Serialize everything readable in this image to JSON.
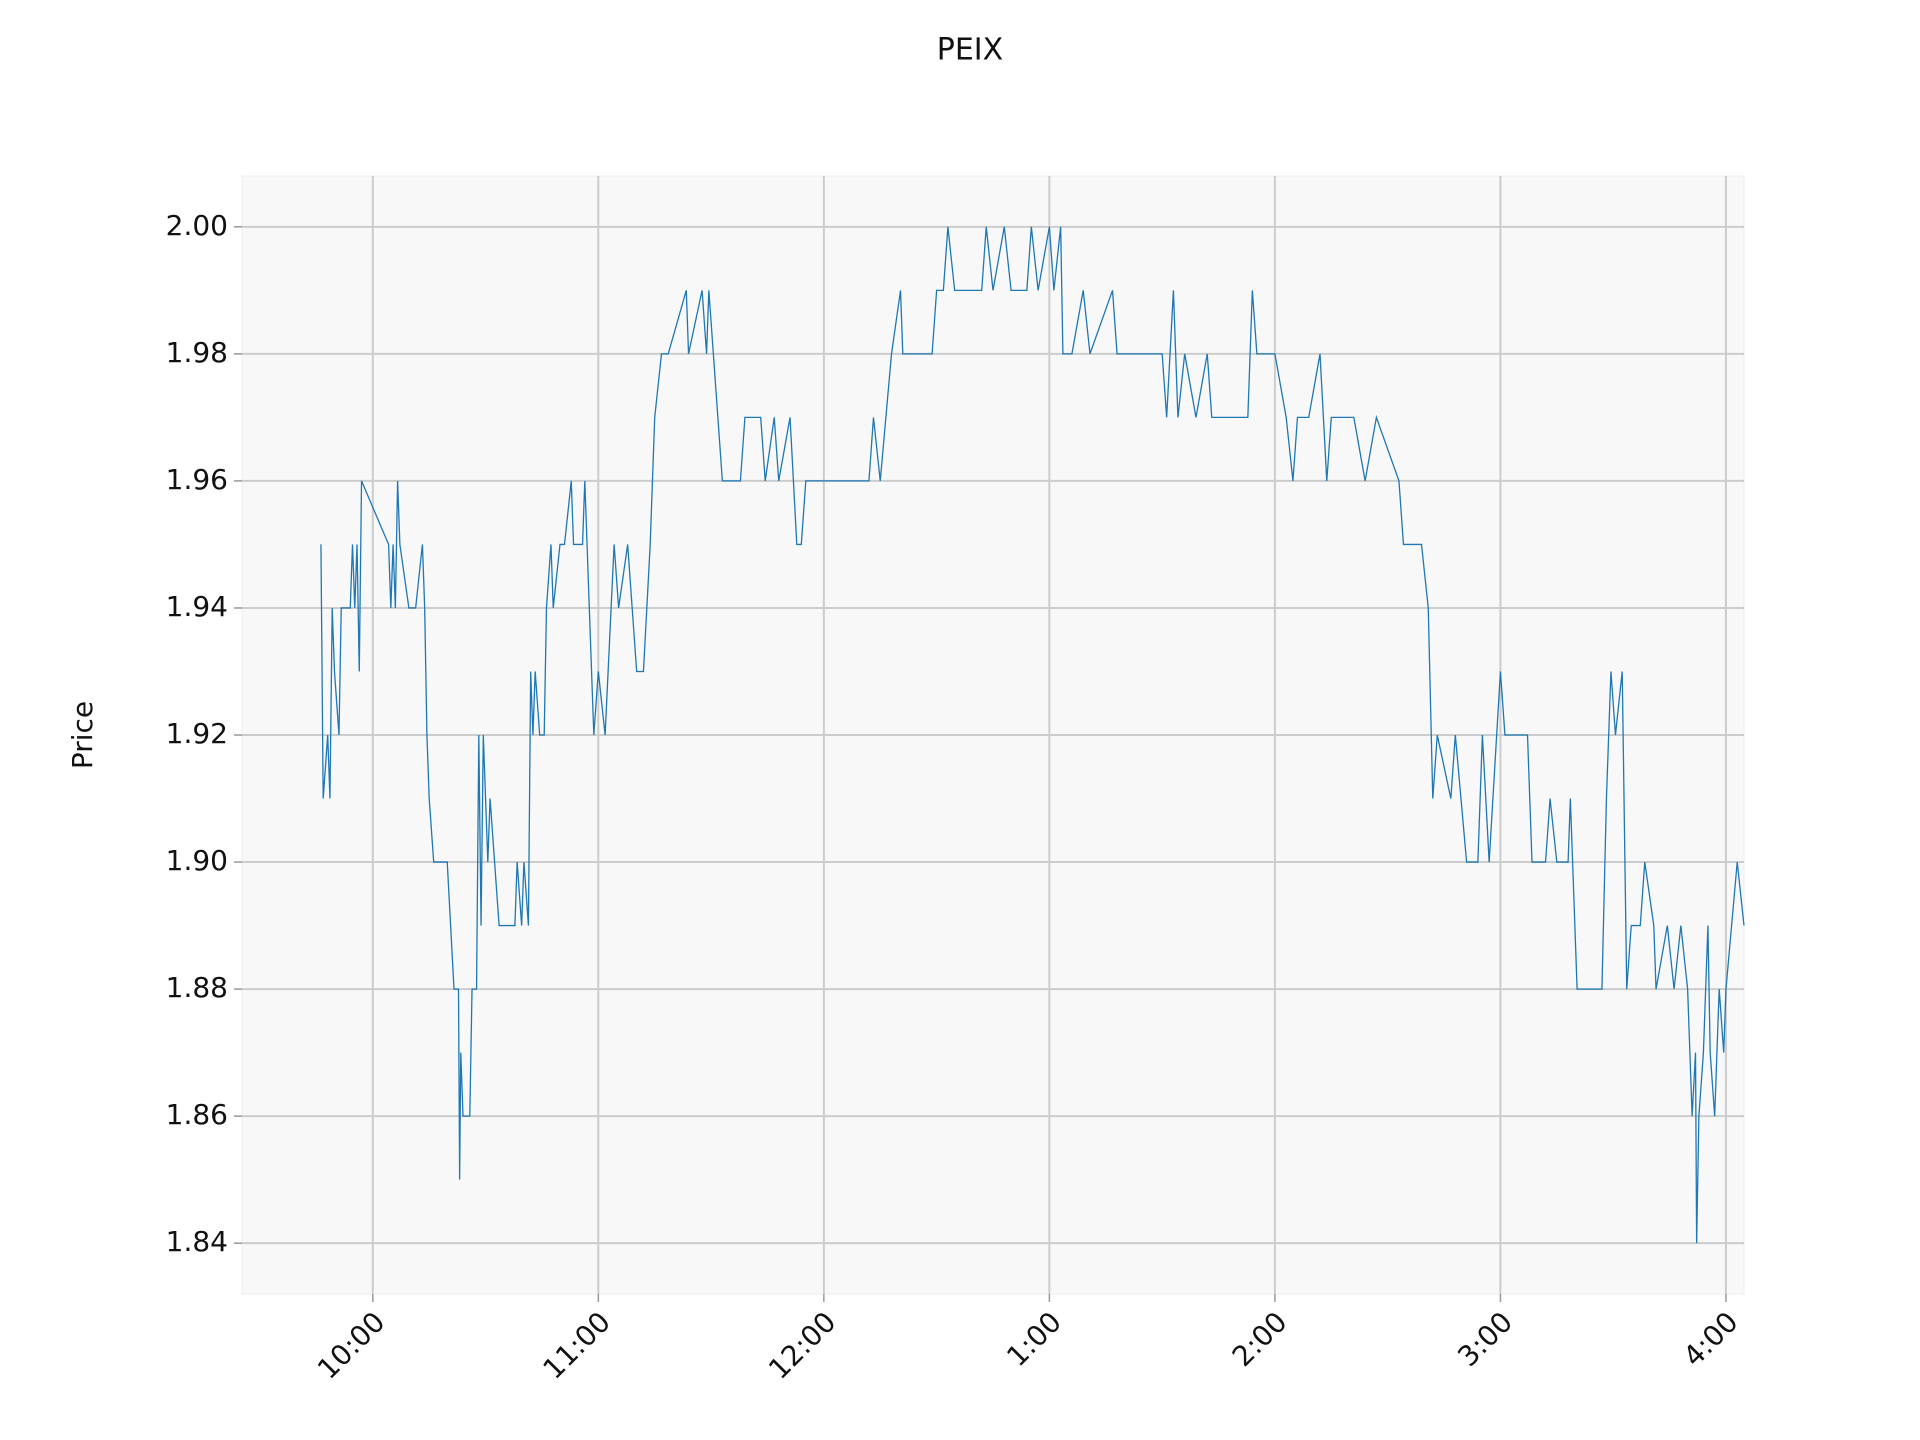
{
  "chart_data": {
    "type": "line",
    "title": "PEIX",
    "y_label": "Price",
    "color": "#1f77b4",
    "grid": true,
    "x": [
      9.77,
      9.78,
      9.8,
      9.81,
      9.82,
      9.83,
      9.85,
      9.86,
      9.9,
      9.91,
      9.92,
      9.93,
      9.94,
      9.95,
      10.07,
      10.08,
      10.09,
      10.1,
      10.11,
      10.12,
      10.16,
      10.19,
      10.22,
      10.23,
      10.24,
      10.25,
      10.27,
      10.33,
      10.36,
      10.38,
      10.385,
      10.39,
      10.4,
      10.43,
      10.44,
      10.46,
      10.47,
      10.48,
      10.49,
      10.51,
      10.52,
      10.54,
      10.56,
      10.63,
      10.64,
      10.66,
      10.67,
      10.69,
      10.7,
      10.71,
      10.72,
      10.74,
      10.76,
      10.77,
      10.79,
      10.8,
      10.83,
      10.85,
      10.88,
      10.89,
      10.93,
      10.94,
      10.95,
      10.98,
      11.0,
      11.03,
      11.07,
      11.09,
      11.13,
      11.15,
      11.17,
      11.2,
      11.23,
      11.25,
      11.28,
      11.31,
      11.39,
      11.4,
      11.46,
      11.48,
      11.49,
      11.51,
      11.53,
      11.55,
      11.63,
      11.65,
      11.72,
      11.74,
      11.78,
      11.8,
      11.85,
      11.88,
      11.9,
      11.92,
      12.0,
      12.2,
      12.22,
      12.25,
      12.3,
      12.34,
      12.35,
      12.48,
      12.5,
      12.53,
      12.55,
      12.58,
      12.7,
      12.72,
      12.75,
      12.8,
      12.83,
      12.9,
      12.92,
      12.95,
      13.0,
      13.02,
      13.05,
      13.06,
      13.1,
      13.15,
      13.18,
      13.28,
      13.3,
      13.35,
      13.5,
      13.52,
      13.55,
      13.57,
      13.6,
      13.65,
      13.7,
      13.72,
      13.8,
      13.88,
      13.9,
      13.92,
      14.0,
      14.05,
      14.08,
      14.1,
      14.15,
      14.2,
      14.23,
      14.25,
      14.35,
      14.4,
      14.45,
      14.55,
      14.57,
      14.65,
      14.68,
      14.7,
      14.72,
      14.78,
      14.8,
      14.85,
      14.9,
      14.92,
      14.95,
      15.0,
      15.02,
      15.12,
      15.14,
      15.2,
      15.22,
      15.25,
      15.3,
      15.31,
      15.34,
      15.45,
      15.47,
      15.49,
      15.51,
      15.54,
      15.56,
      15.58,
      15.62,
      15.64,
      15.68,
      15.69,
      15.74,
      15.77,
      15.8,
      15.83,
      15.85,
      15.865,
      15.87,
      15.88,
      15.9,
      15.92,
      15.93,
      15.95,
      15.97,
      15.99,
      16.0,
      16.05,
      16.08
    ],
    "values": [
      1.95,
      1.91,
      1.92,
      1.91,
      1.94,
      1.93,
      1.92,
      1.94,
      1.94,
      1.95,
      1.94,
      1.95,
      1.93,
      1.96,
      1.95,
      1.94,
      1.95,
      1.94,
      1.96,
      1.95,
      1.94,
      1.94,
      1.95,
      1.94,
      1.92,
      1.91,
      1.9,
      1.9,
      1.88,
      1.88,
      1.85,
      1.87,
      1.86,
      1.86,
      1.88,
      1.88,
      1.92,
      1.89,
      1.92,
      1.9,
      1.91,
      1.9,
      1.89,
      1.89,
      1.9,
      1.89,
      1.9,
      1.89,
      1.93,
      1.92,
      1.93,
      1.92,
      1.92,
      1.94,
      1.95,
      1.94,
      1.95,
      1.95,
      1.96,
      1.95,
      1.95,
      1.96,
      1.95,
      1.92,
      1.93,
      1.92,
      1.95,
      1.94,
      1.95,
      1.94,
      1.93,
      1.93,
      1.95,
      1.97,
      1.98,
      1.98,
      1.99,
      1.98,
      1.99,
      1.98,
      1.99,
      1.98,
      1.97,
      1.96,
      1.96,
      1.97,
      1.97,
      1.96,
      1.97,
      1.96,
      1.97,
      1.95,
      1.95,
      1.96,
      1.96,
      1.96,
      1.97,
      1.96,
      1.98,
      1.99,
      1.98,
      1.98,
      1.99,
      1.99,
      2.0,
      1.99,
      1.99,
      2.0,
      1.99,
      2.0,
      1.99,
      1.99,
      2.0,
      1.99,
      2.0,
      1.99,
      2.0,
      1.98,
      1.98,
      1.99,
      1.98,
      1.99,
      1.98,
      1.98,
      1.98,
      1.97,
      1.99,
      1.97,
      1.98,
      1.97,
      1.98,
      1.97,
      1.97,
      1.97,
      1.99,
      1.98,
      1.98,
      1.97,
      1.96,
      1.97,
      1.97,
      1.98,
      1.96,
      1.97,
      1.97,
      1.96,
      1.97,
      1.96,
      1.95,
      1.95,
      1.94,
      1.91,
      1.92,
      1.91,
      1.92,
      1.9,
      1.9,
      1.92,
      1.9,
      1.93,
      1.92,
      1.92,
      1.9,
      1.9,
      1.91,
      1.9,
      1.9,
      1.91,
      1.88,
      1.88,
      1.91,
      1.93,
      1.92,
      1.93,
      1.88,
      1.89,
      1.89,
      1.9,
      1.89,
      1.88,
      1.89,
      1.88,
      1.89,
      1.88,
      1.86,
      1.87,
      1.84,
      1.86,
      1.87,
      1.89,
      1.87,
      1.86,
      1.88,
      1.87,
      1.88,
      1.9,
      1.89
    ],
    "xlim": [
      9.42,
      16.08
    ],
    "xticks": [
      {
        "value": 10,
        "label": "10:00"
      },
      {
        "value": 11,
        "label": "11:00"
      },
      {
        "value": 12,
        "label": "12:00"
      },
      {
        "value": 13,
        "label": "1:00"
      },
      {
        "value": 14,
        "label": "2:00"
      },
      {
        "value": 15,
        "label": "3:00"
      },
      {
        "value": 16,
        "label": "4:00"
      }
    ],
    "ylim": [
      1.832,
      2.008
    ],
    "yticks": [
      {
        "value": 1.84,
        "label": "1.84"
      },
      {
        "value": 1.86,
        "label": "1.86"
      },
      {
        "value": 1.88,
        "label": "1.88"
      },
      {
        "value": 1.9,
        "label": "1.90"
      },
      {
        "value": 1.92,
        "label": "1.92"
      },
      {
        "value": 1.94,
        "label": "1.94"
      },
      {
        "value": 1.96,
        "label": "1.96"
      },
      {
        "value": 1.98,
        "label": "1.98"
      },
      {
        "value": 2,
        "label": "2.00"
      }
    ]
  }
}
